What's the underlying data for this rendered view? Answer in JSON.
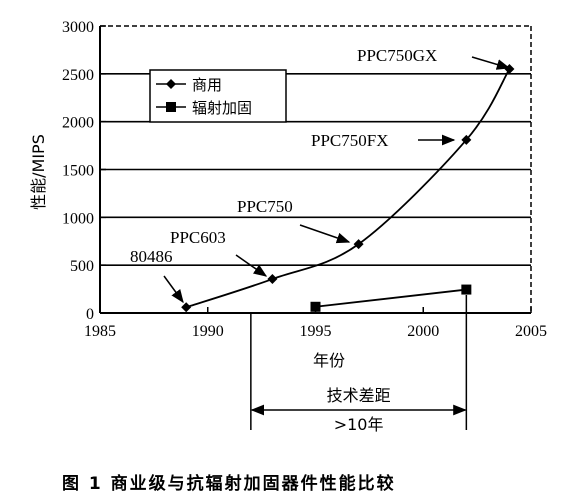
{
  "chart_data": {
    "type": "line",
    "title": "",
    "xlabel": "年份",
    "ylabel": "性能/MIPS",
    "xlim": [
      1985,
      2005
    ],
    "ylim": [
      0,
      3000
    ],
    "xticks": [
      1985,
      1990,
      1995,
      2000,
      2005
    ],
    "yticks": [
      0,
      500,
      1000,
      1500,
      2000,
      2500,
      3000
    ],
    "grid": "horizontal",
    "legend_position": "upper-left",
    "series": [
      {
        "name": "商用",
        "marker": "diamond",
        "points": [
          {
            "x": 1989,
            "y": 60,
            "label": "80486"
          },
          {
            "x": 1993,
            "y": 355,
            "label": "PPC603"
          },
          {
            "x": 1997,
            "y": 720,
            "label": "PPC750"
          },
          {
            "x": 2002,
            "y": 1810,
            "label": "PPC750FX"
          },
          {
            "x": 2004,
            "y": 2550,
            "label": "PPC750GX"
          }
        ]
      },
      {
        "name": "辐射加固",
        "marker": "square",
        "points": [
          {
            "x": 1995,
            "y": 65
          },
          {
            "x": 2002,
            "y": 245
          }
        ]
      }
    ],
    "annotations": {
      "tech_gap_label": "技术差距",
      "tech_gap_value": ">10年",
      "tech_gap_x": [
        1992,
        2002
      ]
    }
  },
  "caption": "图 1   商业级与抗辐射加固器件性能比较"
}
